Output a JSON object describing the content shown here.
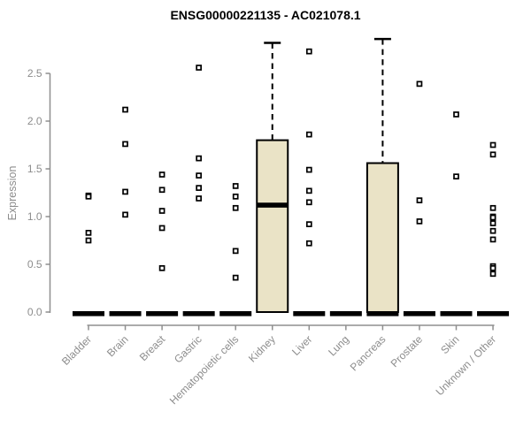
{
  "chart_data": {
    "type": "boxplot",
    "title": "ENSG00000221135 - AC021078.1",
    "ylabel": "Expression",
    "xlabel": "",
    "ylim": [
      0,
      2.9
    ],
    "yticks": [
      0.0,
      0.5,
      1.0,
      1.5,
      2.0,
      2.5
    ],
    "grid": false,
    "legend": "none",
    "categories": [
      "Bladder",
      "Brain",
      "Breast",
      "Gastric",
      "Hematopoietic cells",
      "Kidney",
      "Liver",
      "Lung",
      "Pancreas",
      "Prostate",
      "Skin",
      "Unknown / Other"
    ],
    "boxes": [
      {
        "label": "Bladder",
        "q1": 0,
        "median": 0,
        "q3": 0,
        "whisker_high": 0,
        "points": [
          1.22,
          1.21,
          0.83,
          0.75
        ]
      },
      {
        "label": "Brain",
        "q1": 0,
        "median": 0,
        "q3": 0,
        "whisker_high": 0,
        "points": [
          2.12,
          1.76,
          1.26,
          1.02
        ]
      },
      {
        "label": "Breast",
        "q1": 0,
        "median": 0,
        "q3": 0,
        "whisker_high": 0,
        "points": [
          1.44,
          1.28,
          1.06,
          0.88,
          0.46
        ]
      },
      {
        "label": "Gastric",
        "q1": 0,
        "median": 0,
        "q3": 0,
        "whisker_high": 0,
        "points": [
          2.56,
          1.61,
          1.43,
          1.3,
          1.19
        ]
      },
      {
        "label": "Hematopoietic cells",
        "q1": 0,
        "median": 0,
        "q3": 0,
        "whisker_high": 0,
        "points": [
          1.32,
          1.21,
          1.09,
          0.64,
          0.36
        ]
      },
      {
        "label": "Kidney",
        "q1": 0,
        "median": 1.12,
        "q3": 1.8,
        "whisker_high": 2.82,
        "points": []
      },
      {
        "label": "Liver",
        "q1": 0,
        "median": 0,
        "q3": 0,
        "whisker_high": 0,
        "points": [
          2.73,
          1.86,
          1.49,
          1.27,
          1.15,
          0.92,
          0.72
        ]
      },
      {
        "label": "Lung",
        "q1": 0,
        "median": 0,
        "q3": 0,
        "whisker_high": 0,
        "points": []
      },
      {
        "label": "Pancreas",
        "q1": 0,
        "median": 0,
        "q3": 1.56,
        "whisker_high": 2.86,
        "points": []
      },
      {
        "label": "Prostate",
        "q1": 0,
        "median": 0,
        "q3": 0,
        "whisker_high": 0,
        "points": [
          2.39,
          1.17,
          0.95
        ]
      },
      {
        "label": "Skin",
        "q1": 0,
        "median": 0,
        "q3": 0,
        "whisker_high": 0,
        "points": [
          2.07,
          1.42
        ]
      },
      {
        "label": "Unknown / Other",
        "q1": 0,
        "median": 0,
        "q3": 0,
        "whisker_high": 0,
        "points": [
          1.75,
          1.65,
          1.09,
          1.0,
          0.99,
          0.93,
          0.85,
          0.76,
          0.48,
          0.46,
          0.4
        ]
      }
    ],
    "colors": {
      "box_fill": "#EAE3C6",
      "box_stroke": "#000000",
      "median": "#000000",
      "zero_bar": "#000000",
      "point_stroke": "#000000",
      "point_fill": "#FFFFFF",
      "axis": "#8F8F8F",
      "tick_label": "#8C8C8C",
      "title": "#000000",
      "background": "#FFFFFF"
    }
  }
}
